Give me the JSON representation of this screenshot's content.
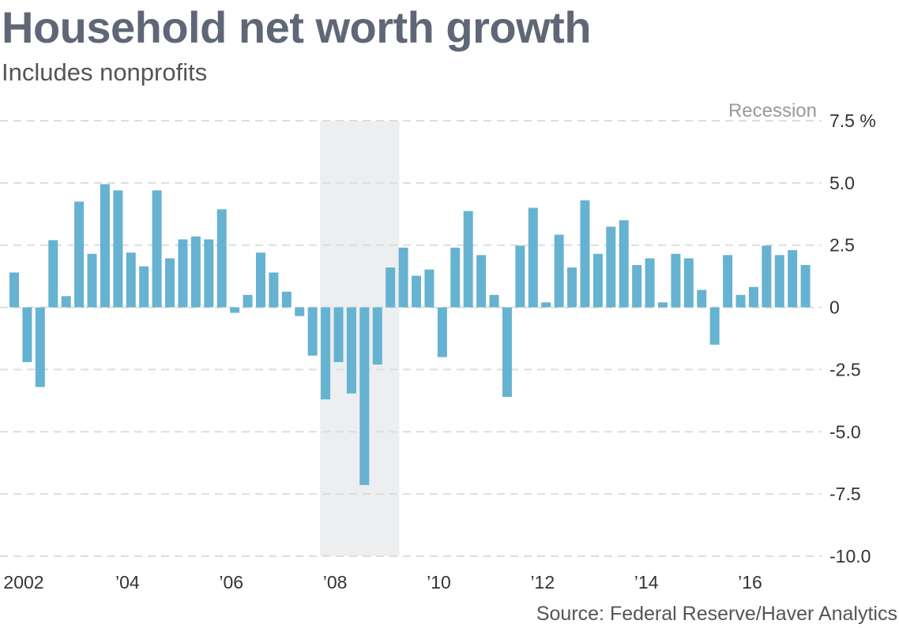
{
  "chart_data": {
    "type": "bar",
    "title": "Household net worth growth",
    "subtitle": "Includes nonprofits",
    "source": "Source: Federal Reserve/Haver Analytics",
    "xlabel": "",
    "ylabel": "%",
    "frequency": "quarterly",
    "start": "2002 Q1",
    "end": "2017 Q2",
    "values": [
      1.4,
      -2.2,
      -3.2,
      2.7,
      0.45,
      4.25,
      2.15,
      4.95,
      4.7,
      2.2,
      1.65,
      4.7,
      1.97,
      2.73,
      2.85,
      2.73,
      3.94,
      -0.22,
      0.5,
      2.2,
      1.4,
      0.63,
      -0.35,
      -1.94,
      -3.7,
      -2.2,
      -3.46,
      -7.14,
      -2.3,
      1.6,
      2.4,
      1.27,
      1.52,
      -2.0,
      2.4,
      3.87,
      2.1,
      0.5,
      -3.6,
      2.48,
      4.0,
      0.2,
      2.92,
      1.6,
      4.3,
      2.15,
      3.24,
      3.5,
      1.7,
      1.97,
      0.2,
      2.15,
      1.97,
      0.7,
      -1.5,
      2.1,
      0.5,
      0.82,
      2.48,
      2.1,
      2.3,
      1.7
    ],
    "ylim": [
      -10,
      7.5
    ],
    "yticks": [
      7.5,
      5.0,
      2.5,
      0,
      -2.5,
      -5.0,
      -7.5,
      -10.0
    ],
    "ytick_labels": [
      "7.5 %",
      "5.0",
      "2.5",
      "0",
      "-2.5",
      "-5.0",
      "-7.5",
      "-10.0"
    ],
    "xticks": [
      {
        "index": 0,
        "label": "2002"
      },
      {
        "index": 8,
        "label": "’04"
      },
      {
        "index": 16,
        "label": "’06"
      },
      {
        "index": 24,
        "label": "’08"
      },
      {
        "index": 32,
        "label": "’10"
      },
      {
        "index": 40,
        "label": "’12"
      },
      {
        "index": 48,
        "label": "’14"
      },
      {
        "index": 56,
        "label": "’16"
      }
    ],
    "recession": {
      "label": "Recession",
      "start_index": 24,
      "end_index": 29
    },
    "grid": true,
    "colors": {
      "bar": "#66b2d1",
      "recession": "#edeef0",
      "grid": "#dddddd"
    }
  }
}
